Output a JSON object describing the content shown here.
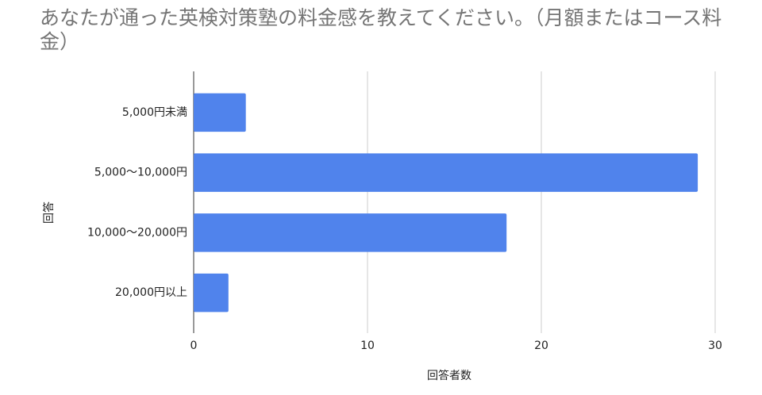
{
  "chart_data": {
    "type": "bar",
    "orientation": "horizontal",
    "title": "あなたが通った英検対策塾の料金感を教えてください。（月額またはコース料金）",
    "x_label": "回答者数",
    "y_label": "回答",
    "categories": [
      "5,000円未満",
      "5,000〜10,000円",
      "10,000〜20,000円",
      "20,000円以上"
    ],
    "values": [
      3,
      29,
      18,
      2
    ],
    "color": "#5083ec",
    "xlim": [
      0,
      30
    ],
    "xticks": [
      0,
      10,
      20,
      30
    ],
    "grid": true
  }
}
